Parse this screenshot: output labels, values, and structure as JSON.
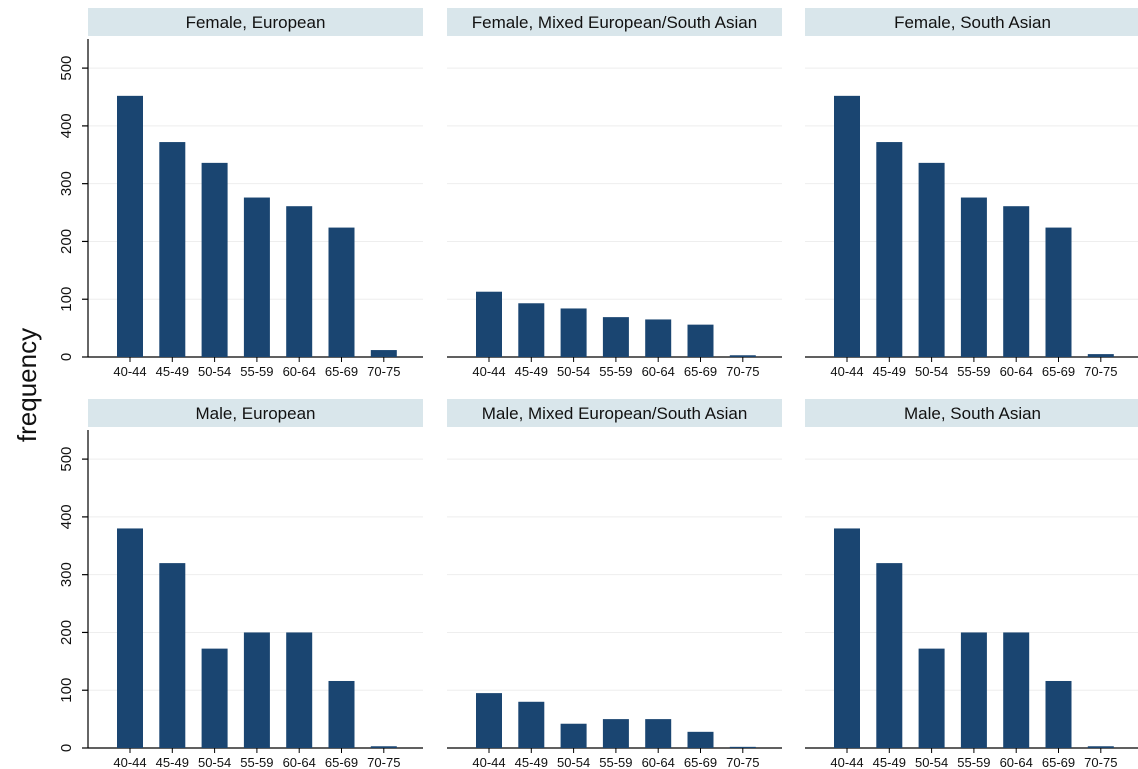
{
  "chart_data": {
    "type": "bar",
    "ylabel": "frequency",
    "ylim": [
      0,
      540
    ],
    "yticks": [
      0,
      100,
      200,
      300,
      400,
      500
    ],
    "grid": true,
    "bar_color": "#1a4571",
    "strip_color": "#d9e6eb",
    "categories": [
      "40-44",
      "45-49",
      "50-54",
      "55-59",
      "60-64",
      "65-69",
      "70-75"
    ],
    "panels": [
      {
        "title": "Female, European",
        "values": [
          452,
          372,
          336,
          276,
          261,
          224,
          12
        ]
      },
      {
        "title": "Female, Mixed European/South Asian",
        "values": [
          113,
          93,
          84,
          69,
          65,
          56,
          3
        ]
      },
      {
        "title": "Female, South Asian",
        "values": [
          452,
          372,
          336,
          276,
          261,
          224,
          5
        ]
      },
      {
        "title": "Male, European",
        "values": [
          380,
          320,
          172,
          200,
          200,
          116,
          3
        ]
      },
      {
        "title": "Male, Mixed European/South Asian",
        "values": [
          95,
          80,
          42,
          50,
          50,
          28,
          2
        ]
      },
      {
        "title": "Male, South Asian",
        "values": [
          380,
          320,
          172,
          200,
          200,
          116,
          3
        ]
      }
    ]
  }
}
